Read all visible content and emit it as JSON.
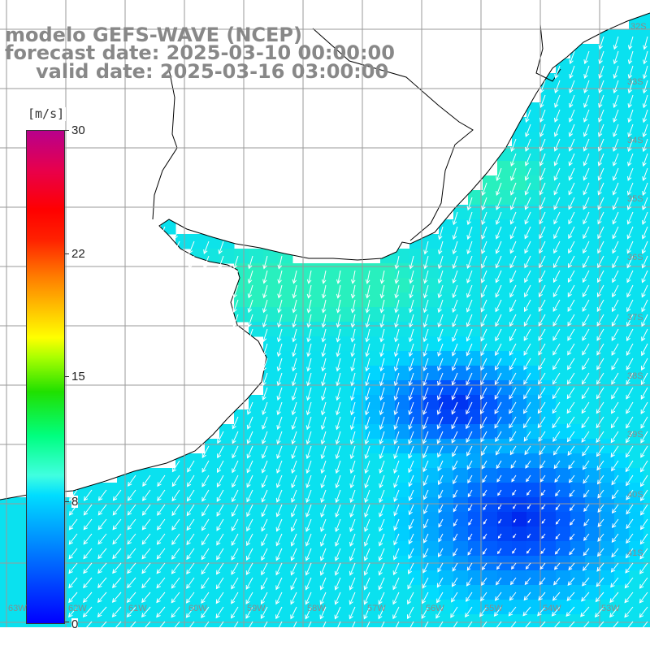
{
  "title": {
    "line1": "modelo GEFS-WAVE (NCEP)",
    "line2": "forecast date: 2025-03-10 00:00:00",
    "line3": "valid date: 2025-03-16 03:00:00"
  },
  "colorbar": {
    "units": "[m/s]",
    "ticks": [
      "30",
      "22",
      "15",
      "8",
      "0"
    ],
    "tick_values": [
      30,
      22,
      15,
      8,
      0
    ],
    "min": 0,
    "max": 30
  },
  "grid": {
    "lat_labels": [
      "32S",
      "33S",
      "34S",
      "35S",
      "36S",
      "37S",
      "38S",
      "39S",
      "40S",
      "41S"
    ],
    "lon_labels": [
      "63W",
      "62W",
      "61W",
      "60W",
      "59W",
      "58W",
      "57W",
      "56W",
      "55W",
      "54W",
      "53W"
    ]
  },
  "colors": {
    "land": "#ffffff",
    "coast": "#000000",
    "grid": "#9a9a9a",
    "arrow": "#ffffff",
    "title": "#888888"
  }
}
